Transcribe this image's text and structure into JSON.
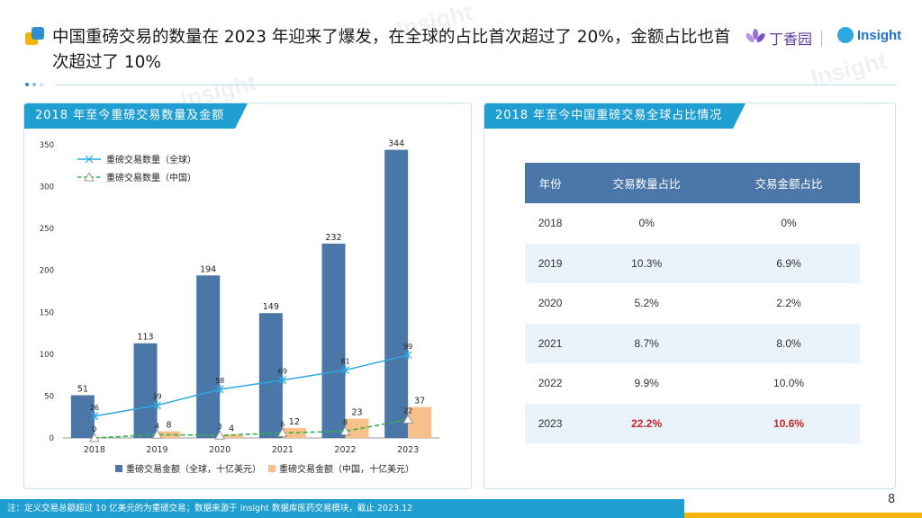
{
  "header": {
    "headline": "中国重磅交易的数量在 2023 年迎来了爆发，在全球的占比首次超过了 20%，金额占比也首次超过了 10%",
    "logo_dxy": "丁香园",
    "logo_insight": "Insight"
  },
  "watermark": "Insight",
  "left_panel": {
    "title": "2018 年至今重磅交易数量及金额"
  },
  "right_panel": {
    "title": "2018 年至今中国重磅交易全球占比情况"
  },
  "chart_data": {
    "type": "bar",
    "categories": [
      "2018",
      "2019",
      "2020",
      "2021",
      "2022",
      "2023"
    ],
    "series": [
      {
        "name": "重磅交易金额（全球，十亿美元）",
        "kind": "bar",
        "color": "#4a76a8",
        "values": [
          51,
          113,
          194,
          149,
          232,
          344
        ]
      },
      {
        "name": "重磅交易金额（中国，十亿美元）",
        "kind": "bar",
        "color": "#f9c08a",
        "values": [
          0,
          8,
          4,
          12,
          23,
          37
        ]
      },
      {
        "name": "重磅交易数量（全球）",
        "kind": "line",
        "color": "#2ea7e0",
        "values": [
          26,
          39,
          58,
          69,
          81,
          99
        ]
      },
      {
        "name": "重磅交易数量（中国）",
        "kind": "line",
        "color": "#2fb34a",
        "values": [
          0,
          4,
          3,
          6,
          8,
          22
        ]
      }
    ],
    "china_amount_labels": [
      "",
      "8",
      "4",
      "12",
      "23",
      "37"
    ],
    "ylim": [
      0,
      350
    ],
    "yticks": [
      0,
      50,
      100,
      150,
      200,
      250,
      300,
      350
    ],
    "legend_top": [
      "重磅交易数量（全球）",
      "重磅交易数量（中国）"
    ],
    "legend_bottom": [
      "重磅交易金额（全球，十亿美元）",
      "重磅交易金额（中国，十亿美元）"
    ]
  },
  "table": {
    "headers": [
      "年份",
      "交易数量占比",
      "交易金额占比"
    ],
    "rows": [
      [
        "2018",
        "0%",
        "0%"
      ],
      [
        "2019",
        "10.3%",
        "6.9%"
      ],
      [
        "2020",
        "5.2%",
        "2.2%"
      ],
      [
        "2021",
        "8.7%",
        "8.0%"
      ],
      [
        "2022",
        "9.9%",
        "10.0%"
      ],
      [
        "2023",
        "22.2%",
        "10.6%"
      ]
    ],
    "highlight_row": 5
  },
  "footer": {
    "note": "注：定义交易总额超过 10 亿美元的为重磅交易；数据来源于 Insight 数据库医药交易模块，截止 2023.12",
    "page_number": "8"
  }
}
